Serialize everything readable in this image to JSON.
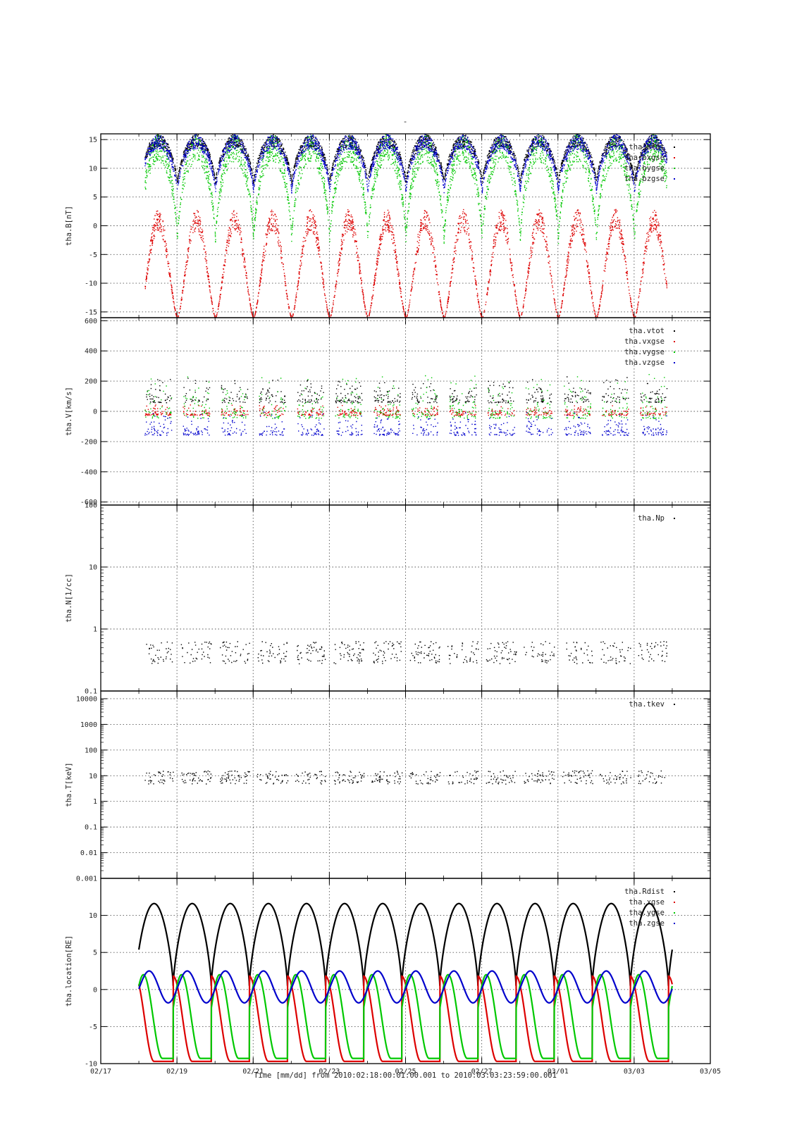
{
  "page": {
    "title_mark": "-"
  },
  "x_axis": {
    "type": "time",
    "range": [
      "02/17",
      "03/05"
    ],
    "tick_labels": [
      "02/17",
      "02/19",
      "02/21",
      "02/23",
      "02/25",
      "02/27",
      "03/01",
      "03/03",
      "03/05"
    ],
    "caption": "Time [mm/dd]  from 2010:02:18:00:01:00.001  to  2010:03:03:23:59:00.001",
    "data_start": "02/18",
    "data_end": "03/04"
  },
  "colors": {
    "black": "#000000",
    "red": "#dd0000",
    "green": "#00c800",
    "blue": "#0000cc",
    "grid": "#555555"
  },
  "chart_data": [
    {
      "type": "scatter",
      "ylabel": "tha.B[nT]",
      "ylim": [
        -16,
        16
      ],
      "yticks": [
        15,
        10,
        5,
        0,
        -5,
        -10,
        -15
      ],
      "ytick_labels": [
        "15",
        "10",
        "5",
        "0",
        "-5",
        "-10",
        "-15"
      ],
      "grid": true,
      "legend_position": "top-right",
      "series": [
        {
          "name": "tha.btot",
          "color": "black"
        },
        {
          "name": "tha.bxgse",
          "color": "red"
        },
        {
          "name": "tha.bygse",
          "color": "green"
        },
        {
          "name": "tha.bzgse",
          "color": "blue"
        }
      ],
      "approx_ranges": {
        "tha.btot": [
          5,
          16
        ],
        "tha.bxgse": [
          -16,
          3
        ],
        "tha.bygse": [
          -8,
          16
        ],
        "tha.bzgse": [
          3,
          16
        ]
      }
    },
    {
      "type": "scatter",
      "ylabel": "tha.V[km/s]",
      "ylim": [
        -620,
        620
      ],
      "yticks": [
        600,
        400,
        200,
        0,
        -200,
        -400,
        -600
      ],
      "ytick_labels": [
        "600",
        "400",
        "200",
        "0",
        "-200",
        "-400",
        "-600"
      ],
      "grid": true,
      "legend_position": "top-right",
      "series": [
        {
          "name": "tha.vtot",
          "color": "black"
        },
        {
          "name": "tha.vxgse",
          "color": "red"
        },
        {
          "name": "tha.vygse",
          "color": "green"
        },
        {
          "name": "tha.vzgse",
          "color": "blue"
        }
      ],
      "approx_ranges": {
        "tha.vtot": [
          0,
          300
        ],
        "tha.vxgse": [
          -50,
          80
        ],
        "tha.vygse": [
          -150,
          380
        ],
        "tha.vzgse": [
          -210,
          60
        ]
      }
    },
    {
      "type": "scatter",
      "ylabel": "tha.N[1/cc]",
      "yscale": "log",
      "ylim": [
        0.1,
        100
      ],
      "yticks": [
        100,
        10,
        1,
        0.1
      ],
      "ytick_labels": [
        "100",
        "10",
        "1",
        "0.1"
      ],
      "grid": true,
      "legend_position": "top-right",
      "series": [
        {
          "name": "tha.Np",
          "color": "black"
        }
      ],
      "approx_ranges": {
        "tha.Np": [
          0.15,
          1.2
        ]
      }
    },
    {
      "type": "scatter",
      "ylabel": "tha.T[keV]",
      "yscale": "log",
      "ylim": [
        0.001,
        20000
      ],
      "yticks": [
        10000,
        1000,
        100,
        10,
        1,
        0.1,
        0.01,
        0.001
      ],
      "ytick_labels": [
        "10000",
        "1000",
        "100",
        "10",
        "1",
        "0.1",
        "0.01",
        "0.001"
      ],
      "grid": true,
      "legend_position": "top-right",
      "series": [
        {
          "name": "tha.tkev",
          "color": "black"
        }
      ],
      "approx_ranges": {
        "tha.tkev": [
          2,
          40
        ]
      }
    },
    {
      "type": "line",
      "ylabel": "tha.location[RE]",
      "ylim": [
        -10,
        15
      ],
      "yticks": [
        10,
        5,
        0,
        -5,
        -10
      ],
      "ytick_labels": [
        "10",
        "5",
        "0",
        "-5",
        "-10"
      ],
      "grid": true,
      "legend_position": "top-right",
      "orbit_period_days": 1.0,
      "series": [
        {
          "name": "tha.Rdist",
          "color": "black",
          "min": 0.5,
          "max": 11.6
        },
        {
          "name": "tha.xgse",
          "color": "red",
          "min": -9.7,
          "max": 1.8
        },
        {
          "name": "tha.ygse",
          "color": "green",
          "min": -9.3,
          "max": 2.0
        },
        {
          "name": "tha.zgse",
          "color": "blue",
          "min": -1.8,
          "max": 2.5
        }
      ]
    }
  ]
}
